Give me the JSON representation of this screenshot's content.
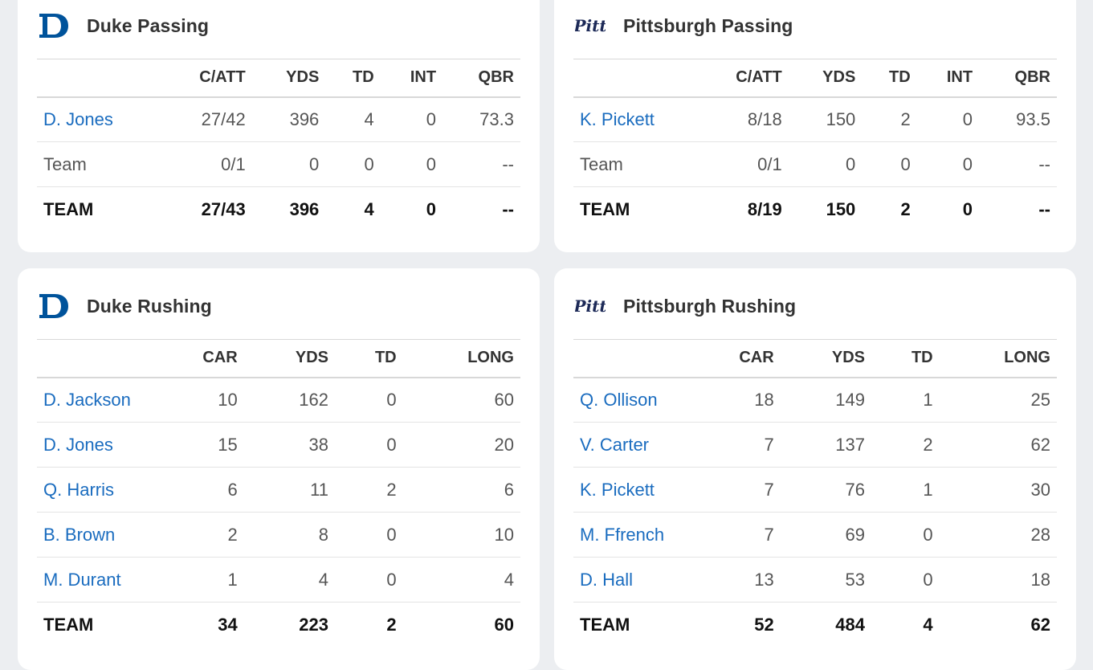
{
  "cards": {
    "duke_passing": {
      "title": "Duke Passing",
      "logo_icon": "duke-logo-icon",
      "columns": [
        "C/ATT",
        "YDS",
        "TD",
        "INT",
        "QBR"
      ],
      "rows": [
        {
          "name": "D. Jones",
          "cells": [
            "27/42",
            "396",
            "4",
            "0",
            "73.3"
          ]
        },
        {
          "name": "Team",
          "cells": [
            "0/1",
            "0",
            "0",
            "0",
            "--"
          ]
        }
      ],
      "total": {
        "name": "TEAM",
        "cells": [
          "27/43",
          "396",
          "4",
          "0",
          "--"
        ]
      }
    },
    "pitt_passing": {
      "title": "Pittsburgh Passing",
      "logo_icon": "pitt-logo-icon",
      "columns": [
        "C/ATT",
        "YDS",
        "TD",
        "INT",
        "QBR"
      ],
      "rows": [
        {
          "name": "K. Pickett",
          "cells": [
            "8/18",
            "150",
            "2",
            "0",
            "93.5"
          ]
        },
        {
          "name": "Team",
          "cells": [
            "0/1",
            "0",
            "0",
            "0",
            "--"
          ]
        }
      ],
      "total": {
        "name": "TEAM",
        "cells": [
          "8/19",
          "150",
          "2",
          "0",
          "--"
        ]
      }
    },
    "duke_rushing": {
      "title": "Duke Rushing",
      "logo_icon": "duke-logo-icon",
      "columns": [
        "CAR",
        "YDS",
        "TD",
        "LONG"
      ],
      "rows": [
        {
          "name": "D. Jackson",
          "cells": [
            "10",
            "162",
            "0",
            "60"
          ]
        },
        {
          "name": "D. Jones",
          "cells": [
            "15",
            "38",
            "0",
            "20"
          ]
        },
        {
          "name": "Q. Harris",
          "cells": [
            "6",
            "11",
            "2",
            "6"
          ]
        },
        {
          "name": "B. Brown",
          "cells": [
            "2",
            "8",
            "0",
            "10"
          ]
        },
        {
          "name": "M. Durant",
          "cells": [
            "1",
            "4",
            "0",
            "4"
          ]
        }
      ],
      "total": {
        "name": "TEAM",
        "cells": [
          "34",
          "223",
          "2",
          "60"
        ]
      }
    },
    "pitt_rushing": {
      "title": "Pittsburgh Rushing",
      "logo_icon": "pitt-logo-icon",
      "columns": [
        "CAR",
        "YDS",
        "TD",
        "LONG"
      ],
      "rows": [
        {
          "name": "Q. Ollison",
          "cells": [
            "18",
            "149",
            "1",
            "25"
          ]
        },
        {
          "name": "V. Carter",
          "cells": [
            "7",
            "137",
            "2",
            "62"
          ]
        },
        {
          "name": "K. Pickett",
          "cells": [
            "7",
            "76",
            "1",
            "30"
          ]
        },
        {
          "name": "M. Ffrench",
          "cells": [
            "7",
            "69",
            "0",
            "28"
          ]
        },
        {
          "name": "D. Hall",
          "cells": [
            "13",
            "53",
            "0",
            "18"
          ]
        }
      ],
      "total": {
        "name": "TEAM",
        "cells": [
          "52",
          "484",
          "4",
          "62"
        ]
      }
    }
  },
  "colors": {
    "background": "#eceef1",
    "card": "#ffffff",
    "link": "#1a6cbf",
    "duke_blue": "#00539b",
    "pitt_navy": "#1c2957"
  }
}
